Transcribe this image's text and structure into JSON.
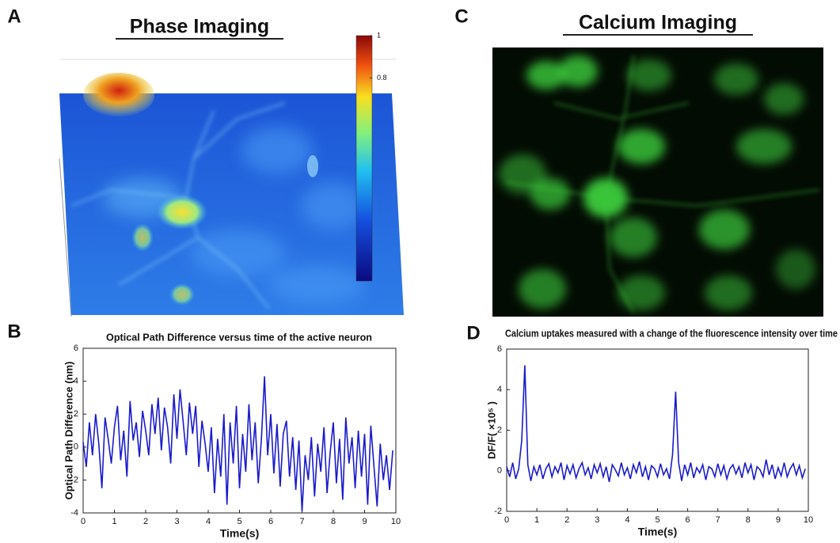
{
  "chart_data": [
    {
      "type": "image",
      "panel": "A",
      "title": "Phase Imaging",
      "clim": [
        -0.16,
        1
      ],
      "cticks": [
        0.8,
        1
      ]
    },
    {
      "type": "image",
      "panel": "C",
      "title": "Calcium Imaging"
    },
    {
      "type": "line",
      "panel": "B",
      "title": "Optical Path Difference versus time of the active neuron",
      "xlabel": "Time(s)",
      "ylabel": "Optical Path Difference (nm)",
      "color": "#1a1acc",
      "xlim": [
        0,
        10
      ],
      "ylim": [
        -4,
        6
      ],
      "xticks": [
        0,
        1,
        2,
        3,
        4,
        5,
        6,
        7,
        8,
        9,
        10
      ],
      "yticks": [
        -4,
        -2,
        0,
        2,
        4,
        6
      ],
      "x": [
        0,
        0.1,
        0.2,
        0.3,
        0.4,
        0.5,
        0.6,
        0.7,
        0.8,
        0.9,
        1,
        1.1,
        1.2,
        1.3,
        1.4,
        1.5,
        1.6,
        1.7,
        1.8,
        1.9,
        2,
        2.1,
        2.2,
        2.3,
        2.4,
        2.5,
        2.6,
        2.7,
        2.8,
        2.9,
        3,
        3.1,
        3.2,
        3.3,
        3.4,
        3.5,
        3.6,
        3.7,
        3.8,
        3.9,
        4,
        4.1,
        4.2,
        4.3,
        4.4,
        4.5,
        4.6,
        4.7,
        4.8,
        4.9,
        5,
        5.1,
        5.2,
        5.3,
        5.4,
        5.5,
        5.6,
        5.7,
        5.8,
        5.9,
        6,
        6.1,
        6.2,
        6.3,
        6.4,
        6.5,
        6.6,
        6.7,
        6.8,
        6.9,
        7,
        7.1,
        7.2,
        7.3,
        7.4,
        7.5,
        7.6,
        7.7,
        7.8,
        7.9,
        8,
        8.1,
        8.2,
        8.3,
        8.4,
        8.5,
        8.6,
        8.7,
        8.8,
        8.9,
        9,
        9.1,
        9.2,
        9.3,
        9.4,
        9.5,
        9.6,
        9.7,
        9.8,
        9.9
      ],
      "values": [
        0.3,
        -1.2,
        1.5,
        -0.5,
        2.0,
        0.2,
        -2.5,
        1.8,
        0.5,
        -1.0,
        1.2,
        2.5,
        -0.8,
        1.0,
        -1.8,
        2.8,
        0.4,
        1.5,
        -0.6,
        2.2,
        1.0,
        -0.5,
        2.6,
        0.8,
        3.0,
        -0.2,
        2.4,
        1.2,
        -1.0,
        3.2,
        0.5,
        3.5,
        1.5,
        -0.5,
        2.7,
        0.8,
        2.5,
        -1.2,
        1.6,
        0.2,
        -1.5,
        1.2,
        -2.8,
        0.5,
        -1.8,
        2.0,
        -3.5,
        1.5,
        -1.0,
        2.5,
        -2.5,
        0.8,
        -1.5,
        2.6,
        -0.8,
        1.5,
        -2.2,
        0.5,
        4.3,
        -0.5,
        2.0,
        -1.6,
        1.4,
        -2.4,
        0.8,
        1.6,
        -1.8,
        0.6,
        -2.6,
        0.4,
        -3.9,
        -0.5,
        -2.0,
        0.6,
        -3.0,
        0.2,
        -1.5,
        1.2,
        -2.8,
        -0.3,
        1.5,
        -2.2,
        0.5,
        -3.2,
        1.8,
        -1.0,
        0.6,
        -2.5,
        1.0,
        -1.8,
        0.8,
        -3.5,
        1.3,
        -1.2,
        -3.6,
        0.2,
        -2.0,
        -0.5,
        -2.6,
        -0.2
      ]
    },
    {
      "type": "line",
      "panel": "D",
      "title": "Calcium uptakes measured with a change of the fluorescence intensity over time",
      "xlabel": "Time(s)",
      "ylabel": "DF/F( ×10⁵ )",
      "color": "#1a1acc",
      "xlim": [
        0,
        10
      ],
      "ylim": [
        -2,
        6
      ],
      "xticks": [
        0,
        1,
        2,
        3,
        4,
        5,
        6,
        7,
        8,
        9,
        10
      ],
      "yticks": [
        -2,
        0,
        2,
        4,
        6
      ],
      "x": [
        0,
        0.1,
        0.2,
        0.3,
        0.4,
        0.5,
        0.6,
        0.7,
        0.8,
        0.9,
        1,
        1.1,
        1.2,
        1.3,
        1.4,
        1.5,
        1.6,
        1.7,
        1.8,
        1.9,
        2,
        2.1,
        2.2,
        2.3,
        2.4,
        2.5,
        2.6,
        2.7,
        2.8,
        2.9,
        3,
        3.1,
        3.2,
        3.3,
        3.4,
        3.5,
        3.6,
        3.7,
        3.8,
        3.9,
        4,
        4.1,
        4.2,
        4.3,
        4.4,
        4.5,
        4.6,
        4.7,
        4.8,
        4.9,
        5,
        5.1,
        5.2,
        5.3,
        5.4,
        5.5,
        5.6,
        5.7,
        5.8,
        5.9,
        6,
        6.1,
        6.2,
        6.3,
        6.4,
        6.5,
        6.6,
        6.7,
        6.8,
        6.9,
        7,
        7.1,
        7.2,
        7.3,
        7.4,
        7.5,
        7.6,
        7.7,
        7.8,
        7.9,
        8,
        8.1,
        8.2,
        8.3,
        8.4,
        8.5,
        8.6,
        8.7,
        8.8,
        8.9,
        9,
        9.1,
        9.2,
        9.3,
        9.4,
        9.5,
        9.6,
        9.7,
        9.8,
        9.9
      ],
      "values": [
        0.2,
        -0.3,
        0.4,
        -0.4,
        0.1,
        1.5,
        5.2,
        0.3,
        -0.5,
        0.2,
        -0.2,
        0.3,
        -0.4,
        0.1,
        0.35,
        -0.3,
        0.2,
        -0.1,
        0.4,
        -0.45,
        0.25,
        -0.15,
        0.3,
        -0.35,
        0.1,
        0.4,
        -0.2,
        0.15,
        -0.4,
        0.3,
        -0.1,
        0.35,
        -0.3,
        0.2,
        -0.55,
        0.3,
        0.05,
        -0.25,
        0.4,
        -0.2,
        0.15,
        -0.4,
        0.3,
        -0.1,
        0.45,
        -0.3,
        0.2,
        -0.45,
        0.25,
        0.1,
        -0.3,
        0.35,
        -0.2,
        0.1,
        -0.4,
        0.8,
        3.9,
        0.4,
        -0.5,
        0.3,
        -0.2,
        0.4,
        -0.35,
        0.15,
        -0.1,
        0.3,
        -0.45,
        0.2,
        0.1,
        -0.3,
        0.35,
        -0.2,
        0.25,
        -0.4,
        0.1,
        0.3,
        -0.15,
        0.2,
        -0.35,
        0.4,
        -0.1,
        0.3,
        -0.45,
        0.2,
        0.05,
        -0.3,
        0.55,
        -0.2,
        0.3,
        -0.4,
        0.15,
        -0.25,
        0.4,
        -0.3,
        0.1,
        0.35,
        -0.2,
        0.25,
        -0.35,
        0.1
      ]
    }
  ]
}
